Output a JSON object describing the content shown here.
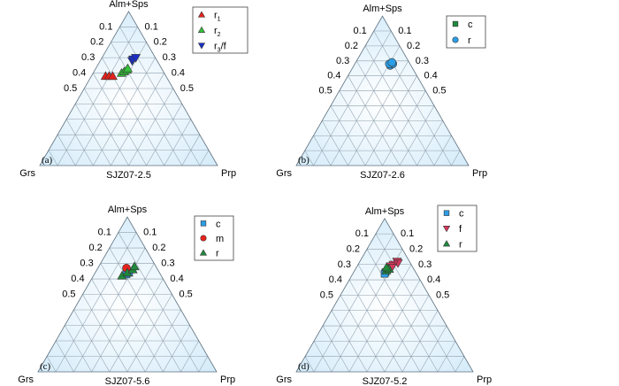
{
  "colors": {
    "background": "#ffffff",
    "triangle_edge": "#d6ecfa",
    "triangle_center": "#ffffff",
    "grid": "#8fa0ad",
    "red": "#e8221c",
    "green": "#35c43a",
    "blue": "#1b2fc8",
    "sky": "#2c9ee6",
    "dark_green": "#1f8a3c",
    "pink": "#d9385c"
  },
  "chart_data": [
    {
      "type": "scatter",
      "subtype": "ternary",
      "panel_label": "(a)",
      "title": "SJZ07-2.5",
      "vertices": {
        "top": "Alm+Sps",
        "left": "Grs",
        "right": "Prp"
      },
      "ticks_left": [
        "0.1",
        "0.2",
        "0.3",
        "0.4",
        "0.5"
      ],
      "ticks_right": [
        "0.1",
        "0.2",
        "0.3",
        "0.4",
        "0.5"
      ],
      "grid": true,
      "legend_position": "top-right",
      "series": [
        {
          "name": "r1",
          "marker": "triangle-up",
          "color": "#e8221c",
          "points": [
            {
              "alm_sps": 0.58,
              "prp": 0.08
            },
            {
              "alm_sps": 0.58,
              "prp": 0.1
            },
            {
              "alm_sps": 0.58,
              "prp": 0.12
            }
          ]
        },
        {
          "name": "r2",
          "marker": "triangle-up",
          "color": "#35c43a",
          "points": [
            {
              "alm_sps": 0.6,
              "prp": 0.16
            },
            {
              "alm_sps": 0.61,
              "prp": 0.17
            },
            {
              "alm_sps": 0.62,
              "prp": 0.18
            },
            {
              "alm_sps": 0.63,
              "prp": 0.18
            }
          ]
        },
        {
          "name": "r3/f",
          "marker": "triangle-down",
          "color": "#1b2fc8",
          "points": [
            {
              "alm_sps": 0.68,
              "prp": 0.18
            },
            {
              "alm_sps": 0.69,
              "prp": 0.18
            },
            {
              "alm_sps": 0.7,
              "prp": 0.19
            }
          ]
        }
      ],
      "legend": [
        {
          "text": "r",
          "sub": "1"
        },
        {
          "text": "r",
          "sub": "2"
        },
        {
          "text": "r",
          "sub": "3",
          "suffix": "/f"
        }
      ]
    },
    {
      "type": "scatter",
      "subtype": "ternary",
      "panel_label": "(b)",
      "title": "SJZ07-2.6",
      "vertices": {
        "top": "Alm+Sps",
        "left": "Grs",
        "right": "Prp"
      },
      "ticks_left": [
        "0.1",
        "0.2",
        "0.3",
        "0.4",
        "0.5"
      ],
      "ticks_right": [
        "0.1",
        "0.2",
        "0.3",
        "0.4",
        "0.5"
      ],
      "grid": true,
      "legend_position": "top-right",
      "series": [
        {
          "name": "c",
          "marker": "square",
          "color": "#1f8a3c",
          "points": []
        },
        {
          "name": "r",
          "marker": "circle",
          "color": "#2c9ee6",
          "points": [
            {
              "alm_sps": 0.67,
              "prp": 0.21
            },
            {
              "alm_sps": 0.68,
              "prp": 0.22
            },
            {
              "alm_sps": 0.68,
              "prp": 0.2
            },
            {
              "alm_sps": 0.69,
              "prp": 0.21
            }
          ]
        }
      ],
      "legend": [
        {
          "text": "c"
        },
        {
          "text": "r"
        }
      ]
    },
    {
      "type": "scatter",
      "subtype": "ternary",
      "panel_label": "(c)",
      "title": "SJZ07-5.6",
      "vertices": {
        "top": "Alm+Sps",
        "left": "Grs",
        "right": "Prp"
      },
      "ticks_left": [
        "0.1",
        "0.2",
        "0.3",
        "0.4",
        "0.5"
      ],
      "ticks_right": [
        "0.1",
        "0.2",
        "0.3",
        "0.4",
        "0.5"
      ],
      "grid": true,
      "legend_position": "top-right",
      "series": [
        {
          "name": "c",
          "marker": "square",
          "color": "#2c9ee6",
          "points": [
            {
              "alm_sps": 0.63,
              "prp": 0.18
            },
            {
              "alm_sps": 0.64,
              "prp": 0.19
            }
          ]
        },
        {
          "name": "m",
          "marker": "circle",
          "color": "#e8221c",
          "points": [
            {
              "alm_sps": 0.67,
              "prp": 0.16
            }
          ]
        },
        {
          "name": "r",
          "marker": "triangle-up",
          "color": "#1f8a3c",
          "points": [
            {
              "alm_sps": 0.62,
              "prp": 0.16
            },
            {
              "alm_sps": 0.64,
              "prp": 0.18
            },
            {
              "alm_sps": 0.66,
              "prp": 0.2
            },
            {
              "alm_sps": 0.68,
              "prp": 0.2
            }
          ]
        }
      ],
      "legend": [
        {
          "text": "c"
        },
        {
          "text": "m"
        },
        {
          "text": "r"
        }
      ]
    },
    {
      "type": "scatter",
      "subtype": "ternary",
      "panel_label": "(d)",
      "title": "SJZ07-5.2",
      "vertices": {
        "top": "Alm+Sps",
        "left": "Grs",
        "right": "Prp"
      },
      "ticks_left": [
        "0.1",
        "0.2",
        "0.3",
        "0.4",
        "0.5"
      ],
      "ticks_right": [
        "0.1",
        "0.2",
        "0.3",
        "0.4",
        "0.5"
      ],
      "grid": true,
      "legend_position": "top-right",
      "series": [
        {
          "name": "c",
          "marker": "square",
          "color": "#2c9ee6",
          "points": [
            {
              "alm_sps": 0.65,
              "prp": 0.18
            },
            {
              "alm_sps": 0.64,
              "prp": 0.18
            }
          ]
        },
        {
          "name": "f",
          "marker": "triangle-down",
          "color": "#d9385c",
          "points": [
            {
              "alm_sps": 0.72,
              "prp": 0.21
            },
            {
              "alm_sps": 0.71,
              "prp": 0.22
            },
            {
              "alm_sps": 0.7,
              "prp": 0.2
            },
            {
              "alm_sps": 0.69,
              "prp": 0.19
            },
            {
              "alm_sps": 0.68,
              "prp": 0.2
            }
          ]
        },
        {
          "name": "r",
          "marker": "triangle-up",
          "color": "#1f8a3c",
          "points": [
            {
              "alm_sps": 0.66,
              "prp": 0.18
            },
            {
              "alm_sps": 0.67,
              "prp": 0.19
            },
            {
              "alm_sps": 0.68,
              "prp": 0.17
            }
          ]
        }
      ],
      "legend": [
        {
          "text": "c"
        },
        {
          "text": "f"
        },
        {
          "text": "r"
        }
      ]
    }
  ]
}
